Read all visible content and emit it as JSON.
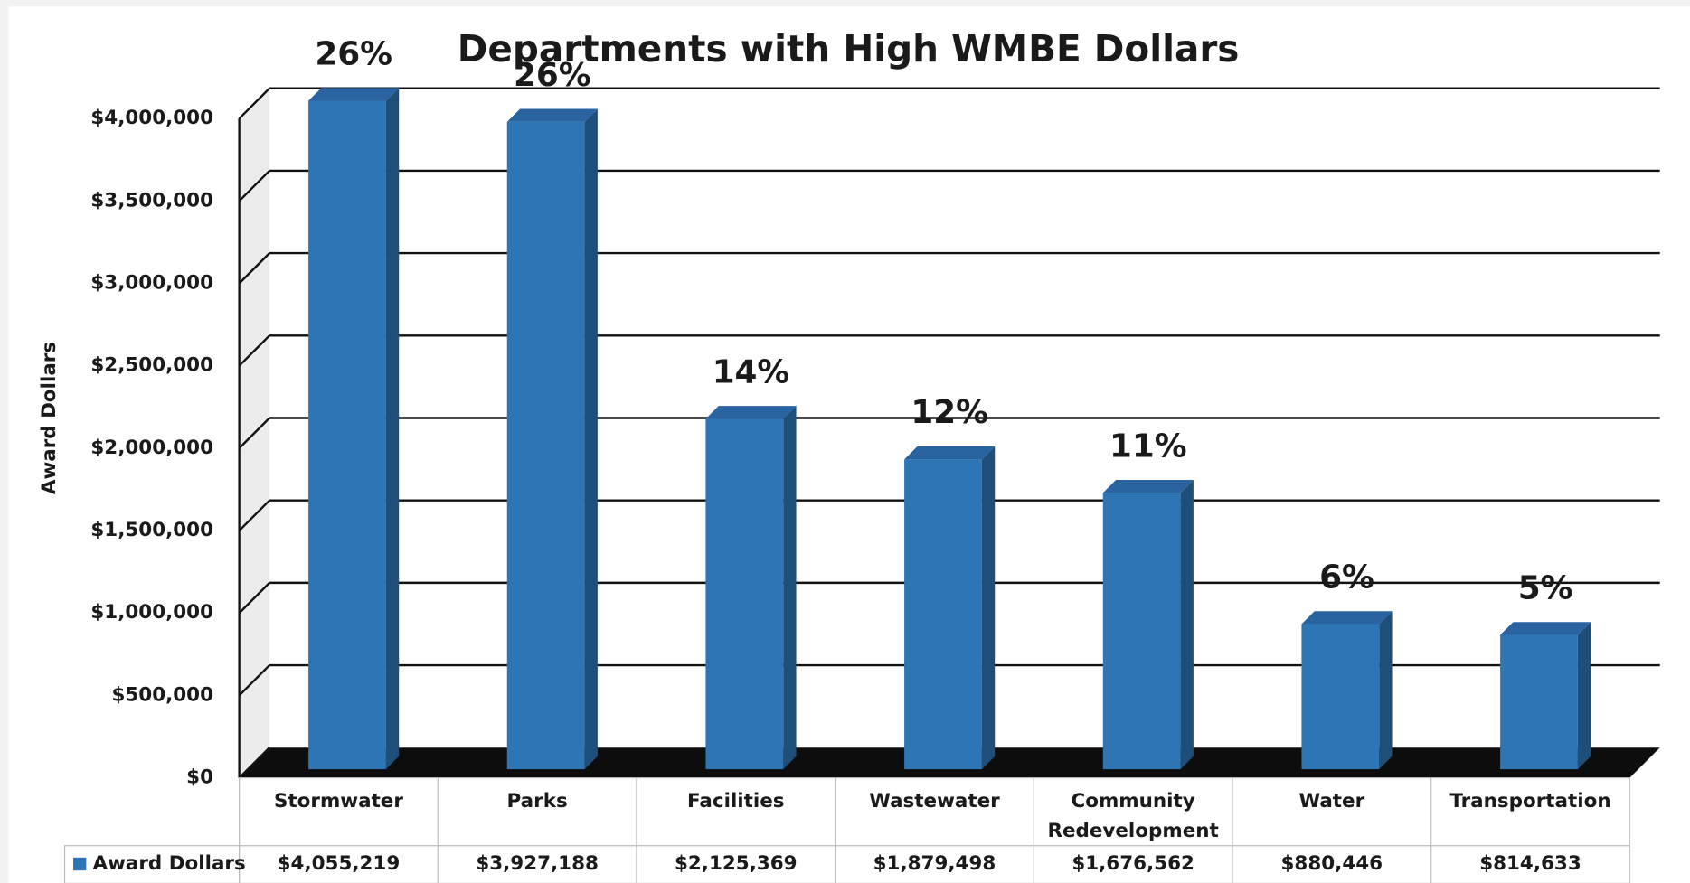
{
  "chart_data": {
    "type": "bar3d",
    "title": "Departments with High WMBE Dollars",
    "y_label": "Award Dollars",
    "categories": [
      "Stormwater",
      "Parks",
      "Facilities",
      "Wastewater",
      "Community Redevelopment",
      "Water",
      "Transportation"
    ],
    "series": [
      {
        "name": "Award Dollars",
        "color": "#2e75b6",
        "values": [
          4055219,
          3927188,
          2125369,
          1879498,
          1676562,
          880446,
          814633
        ],
        "value_labels": [
          "$4,055,219",
          "$3,927,188",
          "$2,125,369",
          "$1,879,498",
          "$1,676,562",
          "$880,446",
          "$814,633"
        ]
      }
    ],
    "annotations": [
      "26%",
      "26%",
      "14%",
      "12%",
      "11%",
      "6%",
      "5%"
    ],
    "ylim": [
      0,
      4000000
    ],
    "yticks": [
      {
        "value": 0,
        "label": "$0"
      },
      {
        "value": 500000,
        "label": "$500,000"
      },
      {
        "value": 1000000,
        "label": "$1,000,000"
      },
      {
        "value": 1500000,
        "label": "$1,500,000"
      },
      {
        "value": 2000000,
        "label": "$2,000,000"
      },
      {
        "value": 2500000,
        "label": "$2,500,000"
      },
      {
        "value": 3000000,
        "label": "$3,000,000"
      },
      {
        "value": 3500000,
        "label": "$3,500,000"
      },
      {
        "value": 4000000,
        "label": "$4,000,000"
      }
    ],
    "grid": true
  }
}
